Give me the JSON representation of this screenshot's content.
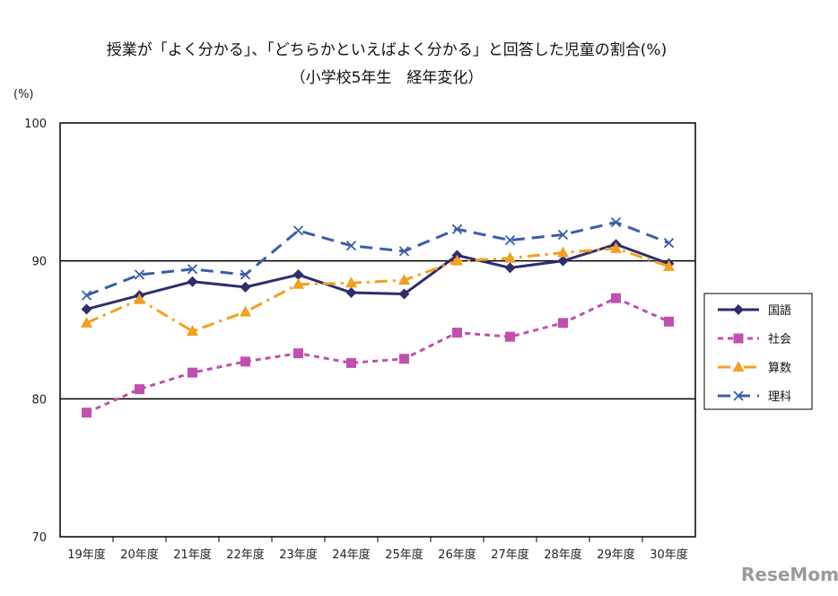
{
  "chart_data": {
    "type": "line",
    "title": "授業が「よく分かる」、「どちらかといえばよく分かる」と回答した児童の割合(%)",
    "subtitle": "（小学校5年生　経年変化）",
    "ylabel": "(%)",
    "ylim": [
      70,
      100
    ],
    "yticks": [
      "100",
      "90",
      "80",
      "70"
    ],
    "categories": [
      "19年度",
      "20年度",
      "21年度",
      "22年度",
      "23年度",
      "24年度",
      "25年度",
      "26年度",
      "27年度",
      "28年度",
      "29年度",
      "30年度"
    ],
    "series": [
      {
        "name": "国語",
        "color": "#2e2e6e",
        "values": [
          86.5,
          87.5,
          88.5,
          88.1,
          89.0,
          87.7,
          87.6,
          90.4,
          89.5,
          90.0,
          91.2,
          89.8
        ]
      },
      {
        "name": "社会",
        "color": "#c050b0",
        "values": [
          79.0,
          80.7,
          81.9,
          82.7,
          83.3,
          82.6,
          82.9,
          84.8,
          84.5,
          85.5,
          87.3,
          85.6
        ]
      },
      {
        "name": "算数",
        "color": "#f5a020",
        "values": [
          85.5,
          87.2,
          84.9,
          86.3,
          88.3,
          88.4,
          88.6,
          90.0,
          90.2,
          90.6,
          90.9,
          89.6
        ]
      },
      {
        "name": "理科",
        "color": "#3a5fa8",
        "values": [
          87.5,
          89.0,
          89.4,
          89.0,
          92.2,
          91.1,
          90.7,
          92.3,
          91.5,
          91.9,
          92.8,
          91.3
        ]
      }
    ],
    "grid": "horizontal lines at 80 and 90",
    "legend_position": "right"
  },
  "watermark": "ReseMom"
}
